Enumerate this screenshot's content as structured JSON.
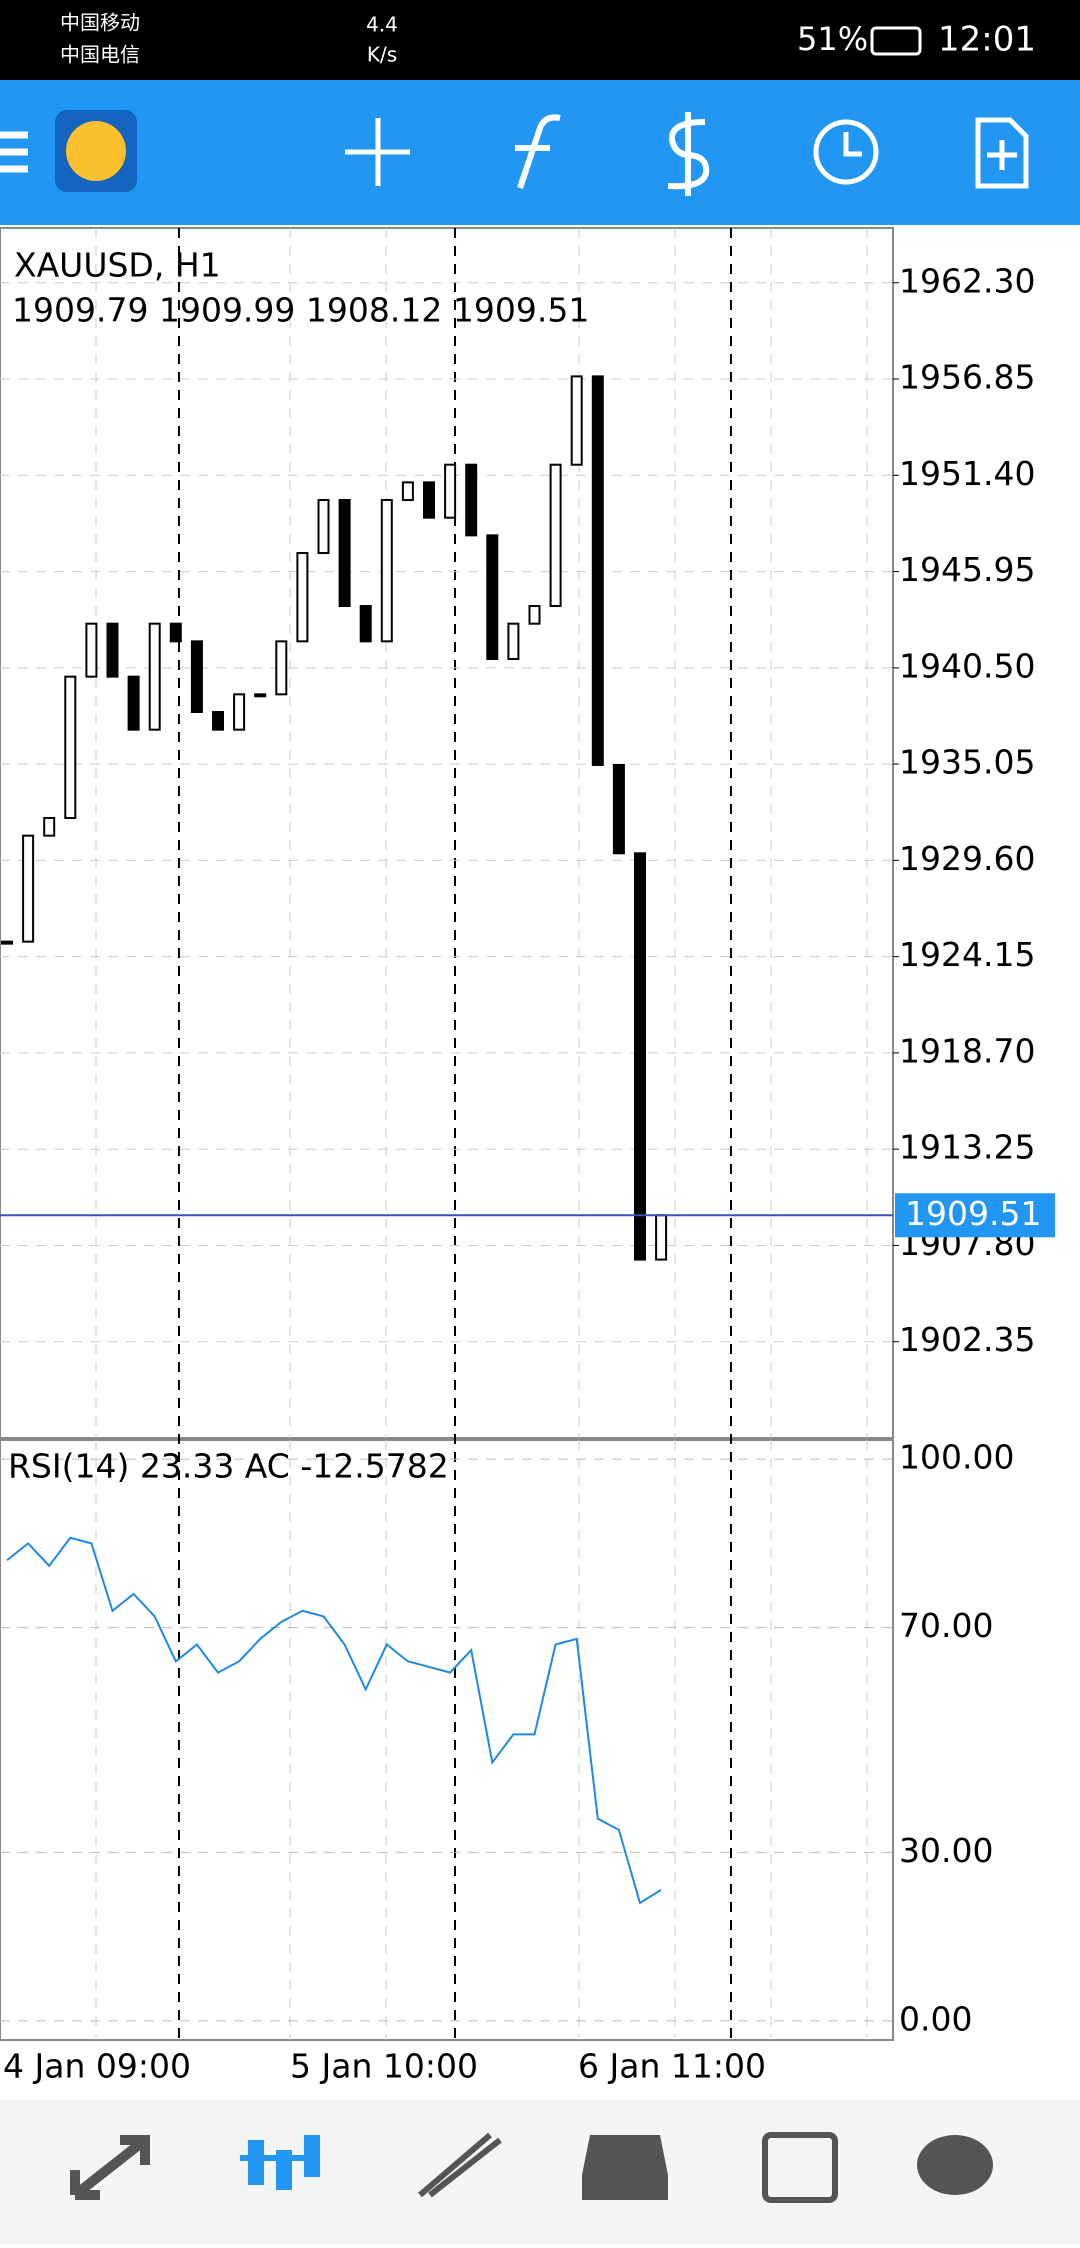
{
  "status_bar": {
    "carrier_1": "中国移动",
    "carrier_2": "中国电信",
    "speed": "4.4",
    "speed_unit": "K/s",
    "battery": "51%",
    "time": "12:01"
  },
  "chart_data": {
    "type": "candlestick",
    "title": "XAUUSD, H1",
    "ohlc_text": "1909.79 1909.99 1908.12 1909.51",
    "close": [
      1925,
      1931,
      1932,
      1940,
      1943,
      1940,
      1937,
      1943,
      1942,
      1938,
      1937,
      1939,
      1939,
      1942,
      1947,
      1950,
      1944,
      1942,
      1950,
      1951,
      1949,
      1952,
      1948,
      1941,
      1943,
      1944,
      1952,
      1957,
      1935,
      1930,
      1907,
      1909.51
    ],
    "current_price": 1909.51,
    "ylim": [
      1896.9,
      1965.4
    ],
    "yticks": [
      {
        "value": 1962.3,
        "label": "1962.30"
      },
      1956.85,
      {
        "value": 1951.4,
        "label": "1951.40"
      },
      1945.95,
      {
        "value": 1940.5,
        "label": "1940.50"
      },
      1935.05,
      {
        "value": 1929.6,
        "label": "1929.60"
      },
      1924.15,
      {
        "value": 1918.7,
        "label": "1918.70"
      },
      1913.25,
      {
        "value": 1907.8,
        "label": "1907.80"
      },
      1902.35
    ],
    "x_labels": [
      "4 Jan 09:00",
      "5 Jan 10:00",
      "6 Jan 11:00"
    ],
    "rsi": {
      "label": "RSI(14) 23.33 AC -12.5782",
      "values": [
        82,
        85,
        81,
        86,
        85,
        73,
        76,
        72,
        64,
        67,
        62,
        64,
        68,
        71,
        73,
        72,
        67,
        59,
        67,
        64,
        63,
        62,
        66,
        46,
        51,
        51,
        67,
        68,
        36,
        34,
        21,
        23.33
      ],
      "ylim": [
        -3.4,
        103.4
      ],
      "yticks": [
        {
          "value": 100,
          "label": "100.00"
        },
        {
          "value": 70,
          "label": "70.00"
        },
        {
          "value": 30,
          "label": "30.00"
        },
        {
          "value": 0,
          "label": "0.00"
        }
      ]
    }
  }
}
